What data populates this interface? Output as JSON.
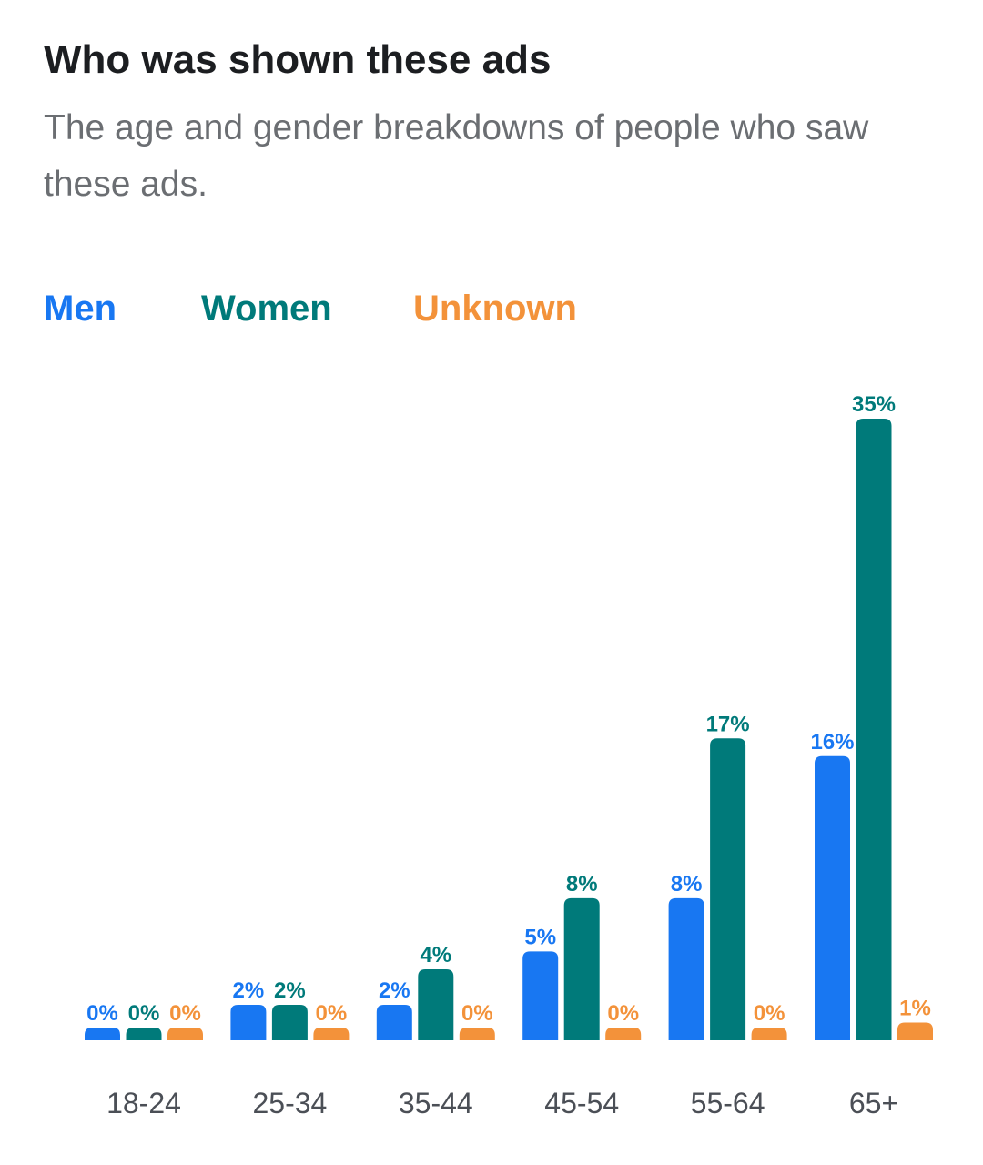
{
  "header": {
    "title": "Who was shown these ads",
    "subtitle": "The age and gender breakdowns of people who saw these ads."
  },
  "colors": {
    "men": "#1877f2",
    "women": "#007a7a",
    "unknown": "#f3923a",
    "tick_label": "#4b4f56"
  },
  "chart_data": {
    "type": "bar",
    "title": "Who was shown these ads",
    "subtitle": "The age and gender breakdowns of people who saw these ads.",
    "xlabel": "",
    "ylabel": "",
    "categories": [
      "18-24",
      "25-34",
      "35-44",
      "45-54",
      "55-64",
      "65+"
    ],
    "series": [
      {
        "name": "Men",
        "key": "men",
        "values": [
          0,
          2,
          2,
          5,
          8,
          16
        ],
        "labels": [
          "0%",
          "2%",
          "2%",
          "5%",
          "8%",
          "16%"
        ]
      },
      {
        "name": "Women",
        "key": "women",
        "values": [
          0,
          2,
          4,
          8,
          17,
          35
        ],
        "labels": [
          "0%",
          "2%",
          "4%",
          "8%",
          "17%",
          "35%"
        ]
      },
      {
        "name": "Unknown",
        "key": "unknown",
        "values": [
          0,
          0,
          0,
          0,
          0,
          1
        ],
        "labels": [
          "0%",
          "0%",
          "0%",
          "0%",
          "0%",
          "1%"
        ]
      }
    ],
    "ylim": [
      0,
      35
    ],
    "legend": "top-left",
    "grid": false
  }
}
